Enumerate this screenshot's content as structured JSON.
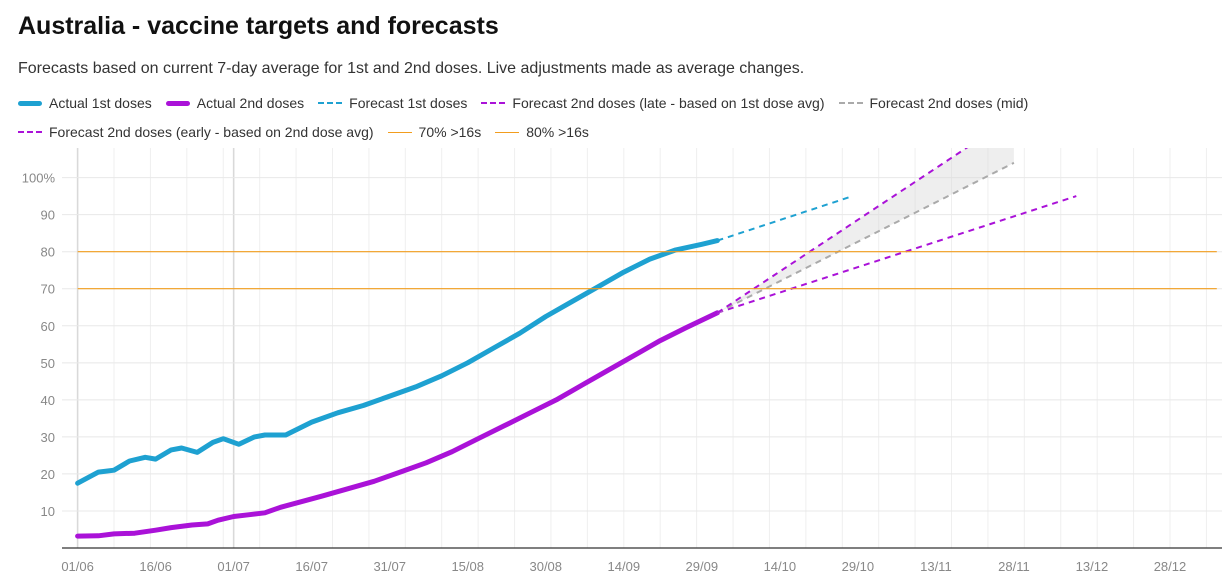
{
  "chart_data": {
    "type": "line",
    "title": "Australia - vaccine targets and forecasts",
    "subtitle": "Forecasts based on current 7-day average for 1st and 2nd doses. Live adjustments made as average changes.",
    "y_ticks": [
      "10",
      "20",
      "30",
      "40",
      "50",
      "60",
      "70",
      "80",
      "90",
      "100%"
    ],
    "x_ticks": [
      "01/06",
      "16/06",
      "01/07",
      "16/07",
      "31/07",
      "15/08",
      "30/08",
      "14/09",
      "29/09",
      "14/10",
      "29/10",
      "13/11",
      "28/11",
      "13/12",
      "28/12"
    ],
    "x_tick_dates": [
      "2021-06-01",
      "2021-06-16",
      "2021-07-01",
      "2021-07-16",
      "2021-07-31",
      "2021-08-15",
      "2021-08-30",
      "2021-09-14",
      "2021-09-29",
      "2021-10-14",
      "2021-10-29",
      "2021-11-13",
      "2021-11-28",
      "2021-12-13",
      "2021-12-28"
    ],
    "xlim": [
      "2021-05-29",
      "2022-01-07"
    ],
    "ylim": [
      0,
      108
    ],
    "grid": true,
    "legend_position": "top",
    "series": [
      {
        "name": "Actual 1st doses",
        "color": "#1ea1d1",
        "style": "solid",
        "x": [
          "2021-06-01",
          "2021-06-05",
          "2021-06-08",
          "2021-06-11",
          "2021-06-14",
          "2021-06-16",
          "2021-06-19",
          "2021-06-21",
          "2021-06-24",
          "2021-06-27",
          "2021-06-29",
          "2021-07-02",
          "2021-07-05",
          "2021-07-07",
          "2021-07-11",
          "2021-07-16",
          "2021-07-21",
          "2021-07-26",
          "2021-07-31",
          "2021-08-05",
          "2021-08-10",
          "2021-08-15",
          "2021-08-20",
          "2021-08-25",
          "2021-08-30",
          "2021-09-04",
          "2021-09-09",
          "2021-09-14",
          "2021-09-19",
          "2021-09-24",
          "2021-09-29",
          "2021-10-02"
        ],
        "values": [
          17.5,
          20.5,
          21.0,
          23.5,
          24.5,
          24.0,
          26.5,
          27.0,
          25.8,
          28.5,
          29.5,
          28.0,
          30.0,
          30.5,
          30.5,
          34.0,
          36.5,
          38.5,
          41.0,
          43.5,
          46.5,
          50.0,
          54.0,
          58.0,
          62.5,
          66.5,
          70.5,
          74.5,
          78.0,
          80.5,
          82.0,
          83.0
        ]
      },
      {
        "name": "Actual 2nd doses",
        "color": "#aa12d8",
        "style": "solid",
        "x": [
          "2021-06-01",
          "2021-06-05",
          "2021-06-08",
          "2021-06-12",
          "2021-06-16",
          "2021-06-19",
          "2021-06-23",
          "2021-06-26",
          "2021-06-28",
          "2021-07-01",
          "2021-07-04",
          "2021-07-07",
          "2021-07-10",
          "2021-07-14",
          "2021-07-18",
          "2021-07-23",
          "2021-07-28",
          "2021-08-02",
          "2021-08-07",
          "2021-08-12",
          "2021-08-17",
          "2021-08-22",
          "2021-08-27",
          "2021-09-01",
          "2021-09-06",
          "2021-09-11",
          "2021-09-16",
          "2021-09-21",
          "2021-09-26",
          "2021-10-02"
        ],
        "values": [
          3.2,
          3.3,
          3.8,
          4.0,
          4.8,
          5.5,
          6.2,
          6.5,
          7.5,
          8.5,
          9.0,
          9.5,
          11.0,
          12.5,
          14.0,
          16.0,
          18.0,
          20.5,
          23.0,
          26.0,
          29.5,
          33.0,
          36.5,
          40.0,
          44.0,
          48.0,
          52.0,
          56.0,
          59.5,
          63.5
        ]
      },
      {
        "name": "Forecast 1st doses",
        "color": "#1ea1d1",
        "style": "dashed",
        "x": [
          "2021-10-02",
          "2021-10-28"
        ],
        "values": [
          83.0,
          95.0
        ]
      },
      {
        "name": "Forecast 2nd doses (late - based on 1st dose avg)",
        "color": "#aa12d8",
        "style": "dashed",
        "x": [
          "2021-10-02",
          "2021-12-10"
        ],
        "values": [
          63.5,
          95.0
        ]
      },
      {
        "name": "Forecast 2nd doses (mid)",
        "color": "#aaaaaa",
        "style": "dashed",
        "x": [
          "2021-10-02",
          "2021-11-28"
        ],
        "values": [
          63.5,
          104.0
        ]
      },
      {
        "name": "Forecast 2nd doses (early - based on 2nd dose avg)",
        "color": "#aa12d8",
        "style": "dashed",
        "x": [
          "2021-10-02",
          "2021-11-21"
        ],
        "values": [
          63.5,
          110.0
        ]
      },
      {
        "name": "70% >16s",
        "color": "#f29d1e",
        "style": "solid",
        "x": [
          "2021-06-01",
          "2022-01-06"
        ],
        "values": [
          70,
          70
        ]
      },
      {
        "name": "80% >16s",
        "color": "#f29d1e",
        "style": "solid",
        "x": [
          "2021-06-01",
          "2022-01-06"
        ],
        "values": [
          80,
          80
        ]
      }
    ]
  }
}
